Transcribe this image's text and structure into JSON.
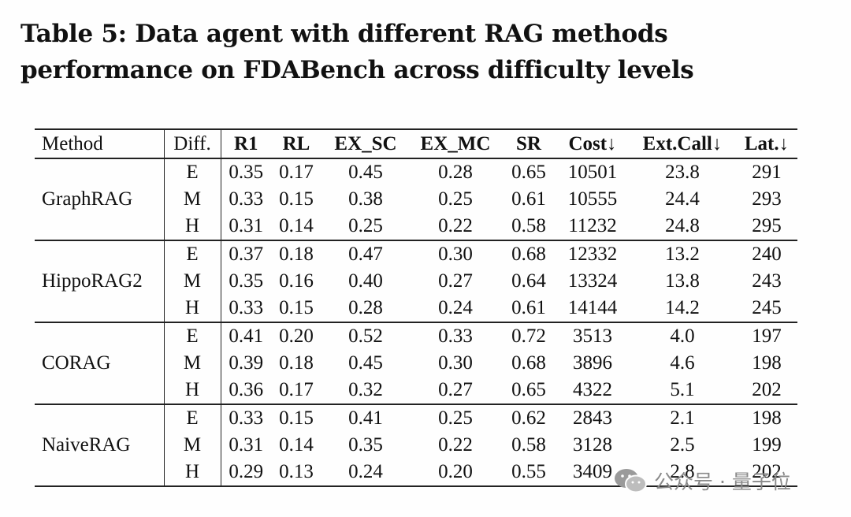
{
  "caption": "Table 5: Data agent with different RAG methods performance on FDABench across difficulty levels",
  "table": {
    "headers": {
      "method": "Method",
      "diff": "Diff.",
      "r1": "R1",
      "rl": "RL",
      "ex_sc": "EX_SC",
      "ex_mc": "EX_MC",
      "sr": "SR",
      "cost": "Cost↓",
      "ext_call": "Ext.Call↓",
      "lat": "Lat.↓"
    },
    "groups": [
      {
        "method": "GraphRAG",
        "rows": [
          {
            "diff": "E",
            "r1": "0.35",
            "rl": "0.17",
            "ex_sc": "0.45",
            "ex_mc": "0.28",
            "sr": "0.65",
            "cost": "10501",
            "ext_call": "23.8",
            "lat": "291"
          },
          {
            "diff": "M",
            "r1": "0.33",
            "rl": "0.15",
            "ex_sc": "0.38",
            "ex_mc": "0.25",
            "sr": "0.61",
            "cost": "10555",
            "ext_call": "24.4",
            "lat": "293"
          },
          {
            "diff": "H",
            "r1": "0.31",
            "rl": "0.14",
            "ex_sc": "0.25",
            "ex_mc": "0.22",
            "sr": "0.58",
            "cost": "11232",
            "ext_call": "24.8",
            "lat": "295"
          }
        ]
      },
      {
        "method": "HippoRAG2",
        "rows": [
          {
            "diff": "E",
            "r1": "0.37",
            "rl": "0.18",
            "ex_sc": "0.47",
            "ex_mc": "0.30",
            "sr": "0.68",
            "cost": "12332",
            "ext_call": "13.2",
            "lat": "240"
          },
          {
            "diff": "M",
            "r1": "0.35",
            "rl": "0.16",
            "ex_sc": "0.40",
            "ex_mc": "0.27",
            "sr": "0.64",
            "cost": "13324",
            "ext_call": "13.8",
            "lat": "243"
          },
          {
            "diff": "H",
            "r1": "0.33",
            "rl": "0.15",
            "ex_sc": "0.28",
            "ex_mc": "0.24",
            "sr": "0.61",
            "cost": "14144",
            "ext_call": "14.2",
            "lat": "245"
          }
        ]
      },
      {
        "method": "CORAG",
        "rows": [
          {
            "diff": "E",
            "r1": "0.41",
            "rl": "0.20",
            "ex_sc": "0.52",
            "ex_mc": "0.33",
            "sr": "0.72",
            "cost": "3513",
            "ext_call": "4.0",
            "lat": "197"
          },
          {
            "diff": "M",
            "r1": "0.39",
            "rl": "0.18",
            "ex_sc": "0.45",
            "ex_mc": "0.30",
            "sr": "0.68",
            "cost": "3896",
            "ext_call": "4.6",
            "lat": "198"
          },
          {
            "diff": "H",
            "r1": "0.36",
            "rl": "0.17",
            "ex_sc": "0.32",
            "ex_mc": "0.27",
            "sr": "0.65",
            "cost": "4322",
            "ext_call": "5.1",
            "lat": "202"
          }
        ]
      },
      {
        "method": "NaiveRAG",
        "rows": [
          {
            "diff": "E",
            "r1": "0.33",
            "rl": "0.15",
            "ex_sc": "0.41",
            "ex_mc": "0.25",
            "sr": "0.62",
            "cost": "2843",
            "ext_call": "2.1",
            "lat": "198"
          },
          {
            "diff": "M",
            "r1": "0.31",
            "rl": "0.14",
            "ex_sc": "0.35",
            "ex_mc": "0.22",
            "sr": "0.58",
            "cost": "3128",
            "ext_call": "2.5",
            "lat": "199"
          },
          {
            "diff": "H",
            "r1": "0.29",
            "rl": "0.13",
            "ex_sc": "0.24",
            "ex_mc": "0.20",
            "sr": "0.55",
            "cost": "3409",
            "ext_call": "2.8",
            "lat": "202"
          }
        ]
      }
    ]
  },
  "watermark": {
    "text": "公众号 · 量子位",
    "icon": "wechat-icon"
  }
}
